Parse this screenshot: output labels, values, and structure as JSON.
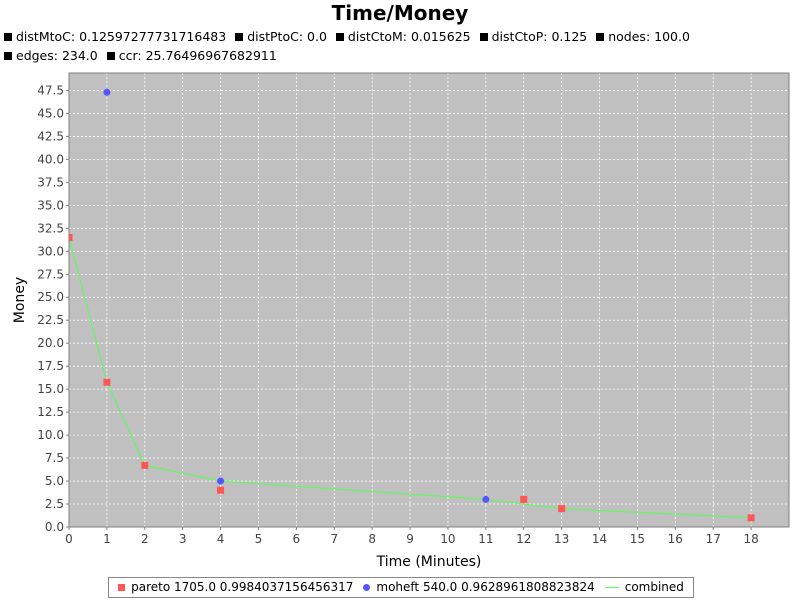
{
  "chart_data": {
    "type": "scatter",
    "title": "Time/Money",
    "subtitle_items": [
      "distMtoC: 0.12597277731716483",
      "distPtoC: 0.0",
      "distCtoM: 0.015625",
      "distCtoP: 0.125",
      "nodes: 100.0",
      "edges: 234.0",
      "ccr: 25.76496967682911"
    ],
    "xlabel": "Time (Minutes)",
    "ylabel": "Money",
    "xlim": [
      0,
      19
    ],
    "ylim": [
      0,
      49.4
    ],
    "x_ticks": [
      0,
      1,
      2,
      3,
      4,
      5,
      6,
      7,
      8,
      9,
      10,
      11,
      12,
      13,
      14,
      15,
      16,
      17,
      18
    ],
    "y_ticks": [
      "0.0",
      "2.5",
      "5.0",
      "7.5",
      "10.0",
      "12.5",
      "15.0",
      "17.5",
      "20.0",
      "22.5",
      "25.0",
      "27.5",
      "30.0",
      "32.5",
      "35.0",
      "37.5",
      "40.0",
      "42.5",
      "45.0",
      "47.5"
    ],
    "grid": true,
    "legend_position": "bottom",
    "series": [
      {
        "name": "pareto 1705.0 0.9984037156456317",
        "marker": "square",
        "color": "#ff5555",
        "points": [
          [
            0,
            31.5
          ],
          [
            1,
            15.75
          ],
          [
            2,
            6.7
          ],
          [
            4,
            4.0
          ],
          [
            12,
            3.0
          ],
          [
            13,
            2.0
          ],
          [
            18,
            1.0
          ]
        ]
      },
      {
        "name": "moheft 540.0 0.9628961808823824",
        "marker": "circle",
        "color": "#5555ff",
        "points": [
          [
            1,
            47.3
          ],
          [
            4,
            5.0
          ],
          [
            11,
            3.0
          ]
        ]
      },
      {
        "name": "combined",
        "marker": "line",
        "color": "#55ff55",
        "points": [
          [
            0,
            31.5
          ],
          [
            1,
            15.75
          ],
          [
            2,
            6.7
          ],
          [
            4,
            5.0
          ],
          [
            11,
            3.0
          ],
          [
            13,
            2.0
          ],
          [
            18,
            1.0
          ]
        ]
      }
    ]
  },
  "colors": {
    "plot_background": "#c0c0c0",
    "gridline": "#ffffff"
  }
}
